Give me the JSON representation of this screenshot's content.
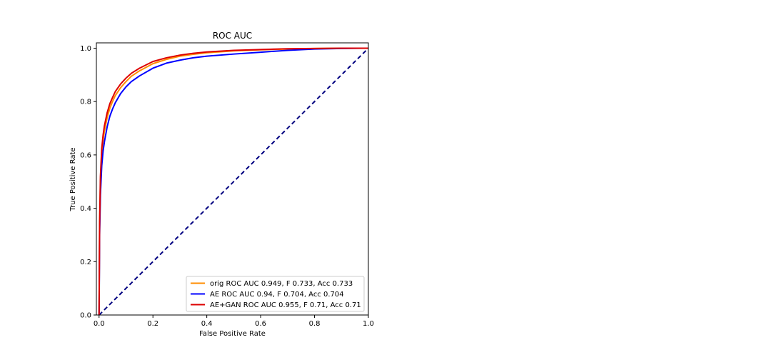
{
  "chart_data": {
    "type": "line",
    "title": "ROC AUC",
    "xlabel": "False Positive Rate",
    "ylabel": "True Positive Rate",
    "xlim": [
      -0.01,
      1.0
    ],
    "ylim": [
      0.0,
      1.02
    ],
    "xticks": [
      0.0,
      0.2,
      0.4,
      0.6,
      0.8,
      1.0
    ],
    "xtick_labels": [
      "0.0",
      "0.2",
      "0.4",
      "0.6",
      "0.8",
      "1.0"
    ],
    "yticks": [
      0.0,
      0.2,
      0.4,
      0.6,
      0.8,
      1.0
    ],
    "ytick_labels": [
      "0.0",
      "0.2",
      "0.4",
      "0.6",
      "0.8",
      "1.0"
    ],
    "grid": false,
    "legend_position": "lower right",
    "series": [
      {
        "name": "orig ROC AUC 0.949, F 0.733, Acc 0.733",
        "color": "#ff8c00",
        "x": [
          0.0,
          0.002,
          0.005,
          0.01,
          0.015,
          0.02,
          0.03,
          0.04,
          0.05,
          0.06,
          0.08,
          0.1,
          0.12,
          0.15,
          0.2,
          0.25,
          0.3,
          0.35,
          0.4,
          0.5,
          0.6,
          0.7,
          0.8,
          0.9,
          1.0
        ],
        "y": [
          0.0,
          0.33,
          0.5,
          0.6,
          0.655,
          0.69,
          0.74,
          0.775,
          0.8,
          0.822,
          0.852,
          0.875,
          0.895,
          0.915,
          0.942,
          0.958,
          0.97,
          0.977,
          0.983,
          0.99,
          0.994,
          0.997,
          0.999,
          1.0,
          1.0
        ]
      },
      {
        "name": "AE ROC AUC 0.94, F 0.704, Acc 0.704",
        "color": "#0000ff",
        "x": [
          0.0,
          0.002,
          0.005,
          0.01,
          0.015,
          0.02,
          0.03,
          0.04,
          0.05,
          0.06,
          0.08,
          0.1,
          0.12,
          0.15,
          0.2,
          0.25,
          0.3,
          0.35,
          0.4,
          0.5,
          0.6,
          0.7,
          0.8,
          0.9,
          1.0
        ],
        "y": [
          0.0,
          0.3,
          0.45,
          0.56,
          0.615,
          0.65,
          0.705,
          0.745,
          0.772,
          0.795,
          0.83,
          0.855,
          0.875,
          0.896,
          0.925,
          0.944,
          0.955,
          0.964,
          0.97,
          0.978,
          0.985,
          0.992,
          0.997,
          0.999,
          1.0
        ]
      },
      {
        "name": "AE+GAN ROC AUC 0.955, F 0.71, Acc 0.71",
        "color": "#dd0000",
        "x": [
          0.0,
          0.002,
          0.005,
          0.01,
          0.015,
          0.02,
          0.03,
          0.04,
          0.05,
          0.06,
          0.08,
          0.1,
          0.12,
          0.15,
          0.2,
          0.25,
          0.3,
          0.35,
          0.4,
          0.5,
          0.6,
          0.7,
          0.8,
          0.9,
          1.0
        ],
        "y": [
          0.0,
          0.34,
          0.52,
          0.625,
          0.675,
          0.71,
          0.758,
          0.792,
          0.815,
          0.837,
          0.866,
          0.888,
          0.906,
          0.925,
          0.95,
          0.964,
          0.974,
          0.981,
          0.986,
          0.992,
          0.995,
          0.998,
          0.999,
          1.0,
          1.0
        ]
      }
    ],
    "reference_line": {
      "x": [
        0.0,
        1.0
      ],
      "y": [
        0.0,
        1.0
      ],
      "color": "#000080",
      "style": "dashed"
    }
  }
}
